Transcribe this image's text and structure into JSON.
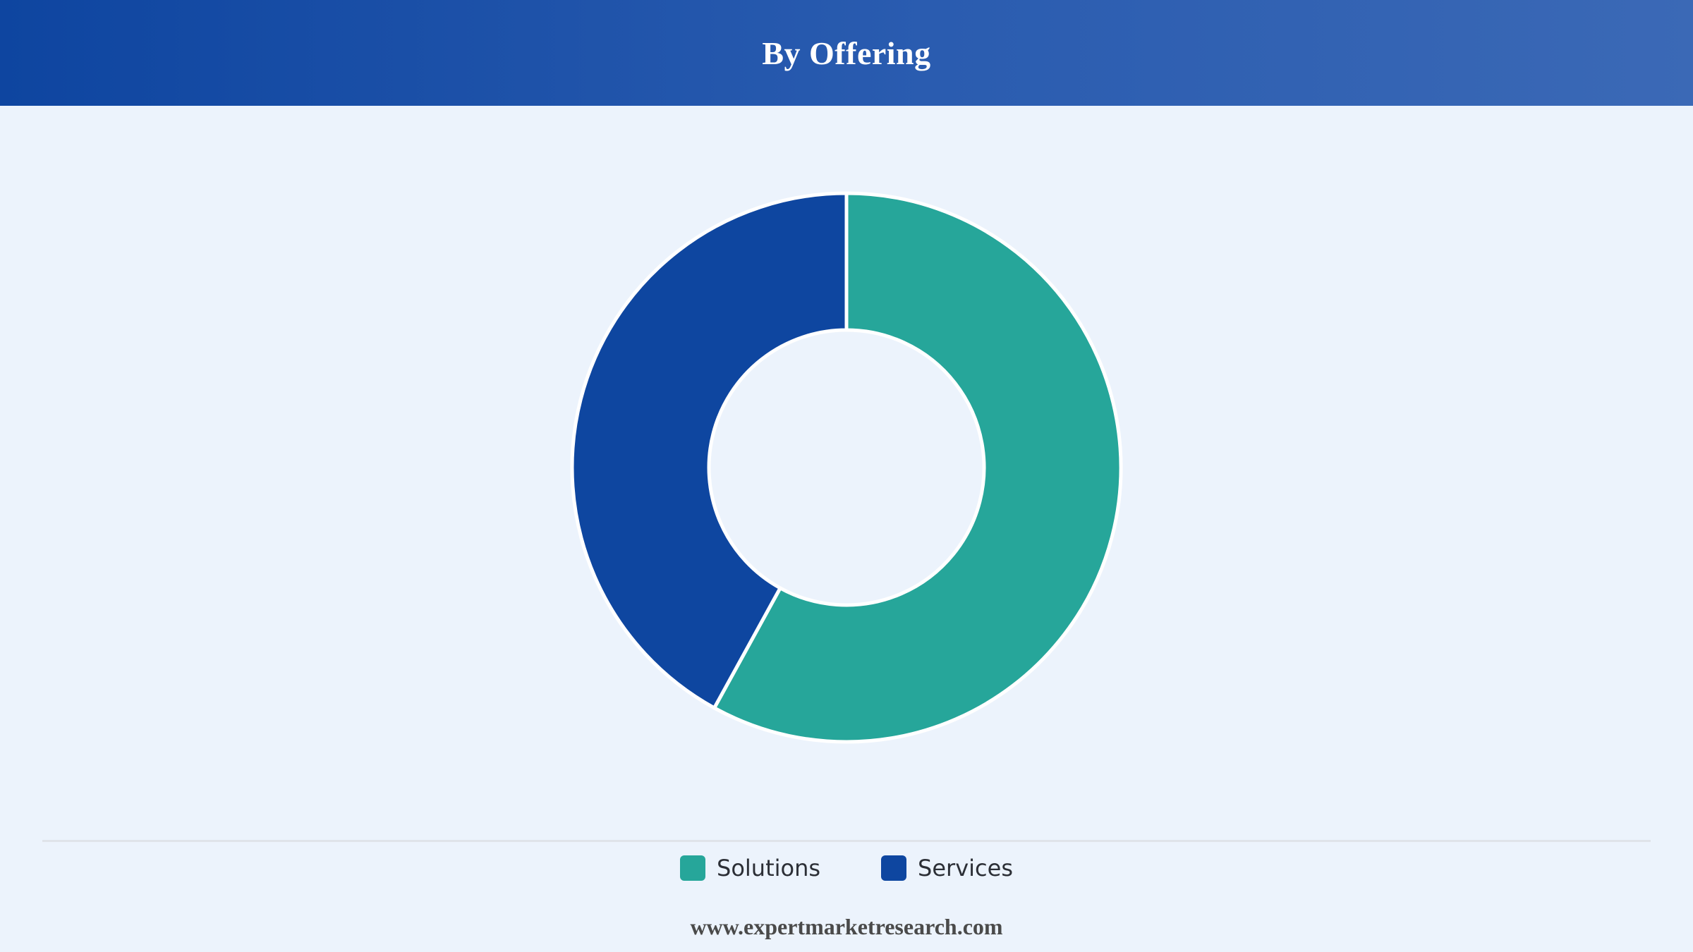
{
  "header": {
    "title": "By Offering"
  },
  "chart_data": {
    "type": "pie",
    "variant": "donut",
    "title": "By Offering",
    "categories": [
      "Solutions",
      "Services"
    ],
    "values": [
      58,
      42
    ],
    "unit": "%",
    "colors": [
      "#26a69a",
      "#0e46a0"
    ],
    "legend_position": "bottom-center"
  },
  "legend": {
    "items": [
      {
        "label": "Solutions",
        "color": "#26a69a"
      },
      {
        "label": "Services",
        "color": "#0e46a0"
      }
    ]
  },
  "footer": {
    "source": "www.expertmarketresearch.com"
  },
  "colors": {
    "background": "#ecf3fc",
    "header_start": "#0e45a0",
    "header_end": "#3b69b6",
    "slice_border": "#ffffff"
  }
}
